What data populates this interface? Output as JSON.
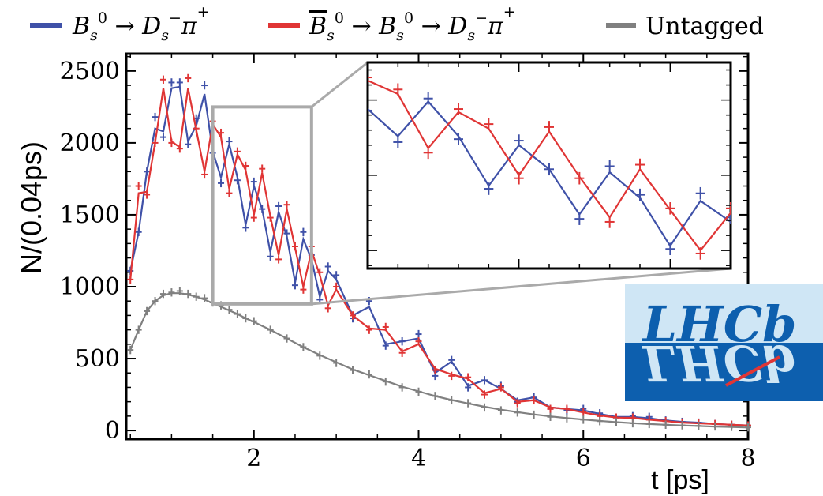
{
  "chart_data": {
    "type": "scatter",
    "title": "",
    "xlabel": "t [ps]",
    "ylabel": "N/(0.04ps)",
    "xlim": [
      0.45,
      8.0
    ],
    "ylim": [
      -60,
      2620
    ],
    "xticks": [
      2,
      4,
      6,
      8
    ],
    "yticks": [
      0,
      500,
      1000,
      1500,
      2000,
      2500
    ],
    "xtick_labels": [
      "2",
      "4",
      "6",
      "8"
    ],
    "ytick_labels": [
      "0",
      "500",
      "1000",
      "1500",
      "2000",
      "2500"
    ],
    "legend_position": "top",
    "series": [
      {
        "name": "B_s^0 → D_s^− π^+",
        "legend_label": {
          "p1": "B",
          "p1sub": "s",
          "p1sup": "0",
          "arrow": " → ",
          "p2": "D",
          "p2sub": "s",
          "p2sup": "−",
          "p3": "π",
          "p3sup": "+"
        },
        "color": "#3f51a8",
        "x": [
          0.5,
          0.6,
          0.7,
          0.8,
          0.9,
          1.0,
          1.1,
          1.2,
          1.3,
          1.4,
          1.5,
          1.6,
          1.7,
          1.8,
          1.9,
          2.0,
          2.1,
          2.2,
          2.3,
          2.4,
          2.5,
          2.6,
          2.7,
          2.8,
          2.9,
          3.0,
          3.2,
          3.4,
          3.6,
          3.8,
          4.0,
          4.2,
          4.4,
          4.6,
          4.8,
          5.0,
          5.2,
          5.4,
          5.6,
          5.8,
          6.0,
          6.2,
          6.4,
          6.6,
          6.8,
          7.0,
          7.2,
          7.4,
          7.6,
          7.8,
          8.0
        ],
        "y": [
          1110,
          1380,
          1800,
          2180,
          2040,
          2420,
          2420,
          1990,
          2170,
          2400,
          1930,
          1720,
          2010,
          1740,
          1410,
          1730,
          1540,
          1210,
          1560,
          1370,
          1010,
          1380,
          1220,
          910,
          1140,
          1080,
          780,
          900,
          590,
          620,
          670,
          380,
          490,
          300,
          350,
          310,
          200,
          230,
          150,
          140,
          150,
          120,
          90,
          100,
          95,
          70,
          60,
          55,
          45,
          40,
          35
        ],
        "fit_y": [
          1110,
          1380,
          1800,
          2100,
          2080,
          2380,
          2390,
          2010,
          2120,
          2340,
          1940,
          1760,
          1990,
          1760,
          1430,
          1700,
          1540,
          1240,
          1520,
          1350,
          1030,
          1330,
          1190,
          930,
          1110,
          1050,
          800,
          860,
          600,
          620,
          640,
          400,
          480,
          310,
          350,
          290,
          210,
          230,
          160,
          150,
          140,
          115,
          95,
          95,
          85,
          70,
          60,
          55,
          45,
          40,
          35
        ]
      },
      {
        "name": "B̄_s^0 → B_s^0 → D_s^− π^+",
        "legend_label": {
          "p0": "B",
          "p0sub": "s",
          "p0sup": "0",
          "arrow": " → ",
          "p1": "B",
          "p1sub": "s",
          "p1sup": "0",
          "p2": "D",
          "p2sub": "s",
          "p2sup": "−",
          "p3": "π",
          "p3sup": "+"
        },
        "color": "#e03535",
        "x": [
          0.5,
          0.6,
          0.7,
          0.8,
          0.9,
          1.0,
          1.1,
          1.2,
          1.3,
          1.4,
          1.5,
          1.6,
          1.7,
          1.8,
          1.9,
          2.0,
          2.1,
          2.2,
          2.3,
          2.4,
          2.5,
          2.6,
          2.7,
          2.8,
          2.9,
          3.0,
          3.2,
          3.4,
          3.6,
          3.8,
          4.0,
          4.2,
          4.4,
          4.6,
          4.8,
          5.0,
          5.2,
          5.4,
          5.6,
          5.8,
          6.0,
          6.2,
          6.4,
          6.6,
          6.8,
          7.0,
          7.2,
          7.4,
          7.6,
          7.8,
          8.0
        ],
        "y": [
          1050,
          1700,
          1640,
          2000,
          2440,
          2000,
          1960,
          2450,
          2100,
          1780,
          2150,
          2070,
          1650,
          1940,
          1840,
          1480,
          1820,
          1480,
          1190,
          1570,
          1280,
          980,
          1280,
          1100,
          850,
          1000,
          800,
          700,
          720,
          540,
          620,
          420,
          380,
          370,
          250,
          300,
          190,
          210,
          150,
          150,
          130,
          100,
          90,
          90,
          75,
          65,
          55,
          50,
          45,
          40,
          35
        ],
        "fit_y": [
          1050,
          1650,
          1660,
          2000,
          2380,
          2010,
          1970,
          2380,
          2090,
          1800,
          2130,
          2040,
          1680,
          1920,
          1810,
          1500,
          1790,
          1490,
          1220,
          1540,
          1270,
          1000,
          1250,
          1080,
          870,
          980,
          800,
          710,
          700,
          550,
          600,
          430,
          390,
          360,
          260,
          290,
          200,
          210,
          160,
          150,
          125,
          105,
          90,
          88,
          75,
          65,
          55,
          50,
          45,
          40,
          35
        ]
      },
      {
        "name": "Untagged",
        "color": "#808080",
        "x": [
          0.5,
          0.6,
          0.7,
          0.8,
          0.9,
          1.0,
          1.1,
          1.2,
          1.3,
          1.4,
          1.5,
          1.6,
          1.7,
          1.8,
          1.9,
          2.0,
          2.2,
          2.4,
          2.6,
          2.8,
          3.0,
          3.2,
          3.4,
          3.6,
          3.8,
          4.0,
          4.2,
          4.4,
          4.6,
          4.8,
          5.0,
          5.2,
          5.4,
          5.6,
          5.8,
          6.0,
          6.2,
          6.4,
          6.6,
          6.8,
          7.0,
          7.2,
          7.4,
          7.6,
          7.8,
          8.0
        ],
        "y": [
          560,
          700,
          830,
          900,
          950,
          960,
          970,
          950,
          930,
          920,
          890,
          870,
          840,
          810,
          780,
          760,
          700,
          640,
          580,
          520,
          470,
          420,
          390,
          340,
          300,
          270,
          240,
          210,
          190,
          160,
          140,
          125,
          110,
          95,
          85,
          75,
          65,
          58,
          50,
          45,
          40,
          36,
          32,
          28,
          25,
          22
        ],
        "fit_y": [
          560,
          700,
          830,
          900,
          940,
          955,
          955,
          945,
          930,
          910,
          885,
          860,
          835,
          810,
          780,
          755,
          700,
          640,
          580,
          525,
          475,
          425,
          385,
          345,
          305,
          272,
          240,
          212,
          188,
          165,
          145,
          128,
          112,
          98,
          86,
          76,
          67,
          58,
          51,
          45,
          40,
          35,
          31,
          27,
          24,
          21
        ]
      }
    ],
    "inset": {
      "zoom_region": {
        "x": [
          1.5,
          2.7
        ],
        "y": [
          880,
          2250
        ]
      },
      "xlim": [
        1.5,
        2.7
      ],
      "ylim": [
        880,
        2250
      ]
    }
  },
  "logo": {
    "text": "LHCb",
    "bg_top": "#cfe6f5",
    "bg_bottom": "#0d5fae",
    "text_color": "#0d5fae",
    "accent": "#e03535"
  }
}
